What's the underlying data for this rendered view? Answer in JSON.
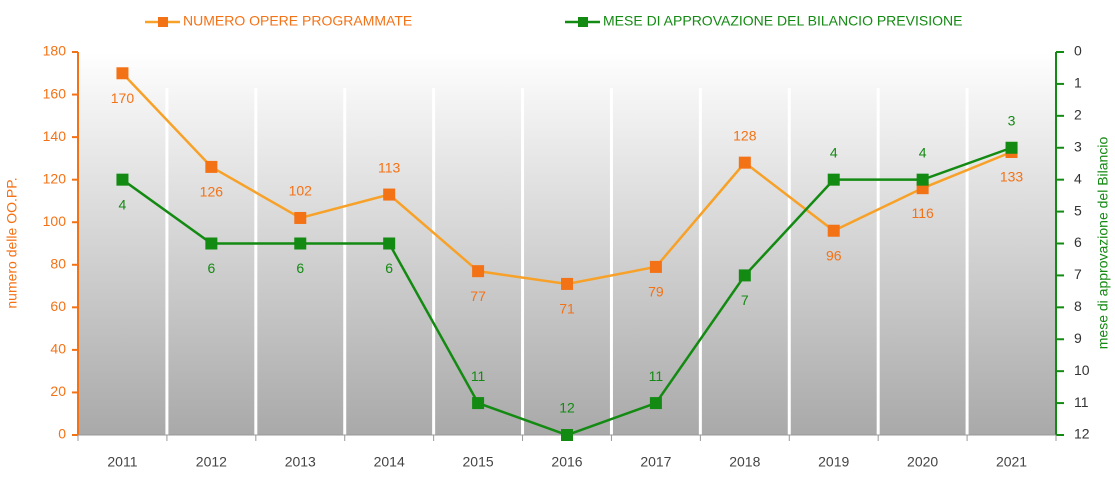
{
  "chart_data": {
    "type": "line",
    "categories": [
      "2011",
      "2012",
      "2013",
      "2014",
      "2015",
      "2016",
      "2017",
      "2018",
      "2019",
      "2020",
      "2021"
    ],
    "series": [
      {
        "name": "NUMERO OPERE PROGRAMMATE",
        "color": "#f7a128",
        "marker_color": "#f47216",
        "axis": "y",
        "values": [
          170,
          126,
          102,
          113,
          77,
          71,
          79,
          128,
          96,
          116,
          133
        ]
      },
      {
        "name": "MESE DI APPROVAZIONE DEL BILANCIO PREVISIONE",
        "color": "#138a12",
        "marker_color": "#138a12",
        "axis": "y2",
        "values": [
          4,
          6,
          6,
          6,
          11,
          12,
          11,
          7,
          4,
          4,
          3
        ]
      }
    ],
    "ylabel": "numero delle OO.PP.",
    "y2label": "mese di approvazione del Bilancio",
    "ylim": [
      0,
      180
    ],
    "yticks": [
      0,
      20,
      40,
      60,
      80,
      100,
      120,
      140,
      160,
      180
    ],
    "y2lim": [
      12,
      0
    ],
    "y2ticks": [
      0,
      1,
      2,
      3,
      4,
      5,
      6,
      7,
      8,
      9,
      10,
      11,
      12
    ],
    "legend": "top"
  }
}
